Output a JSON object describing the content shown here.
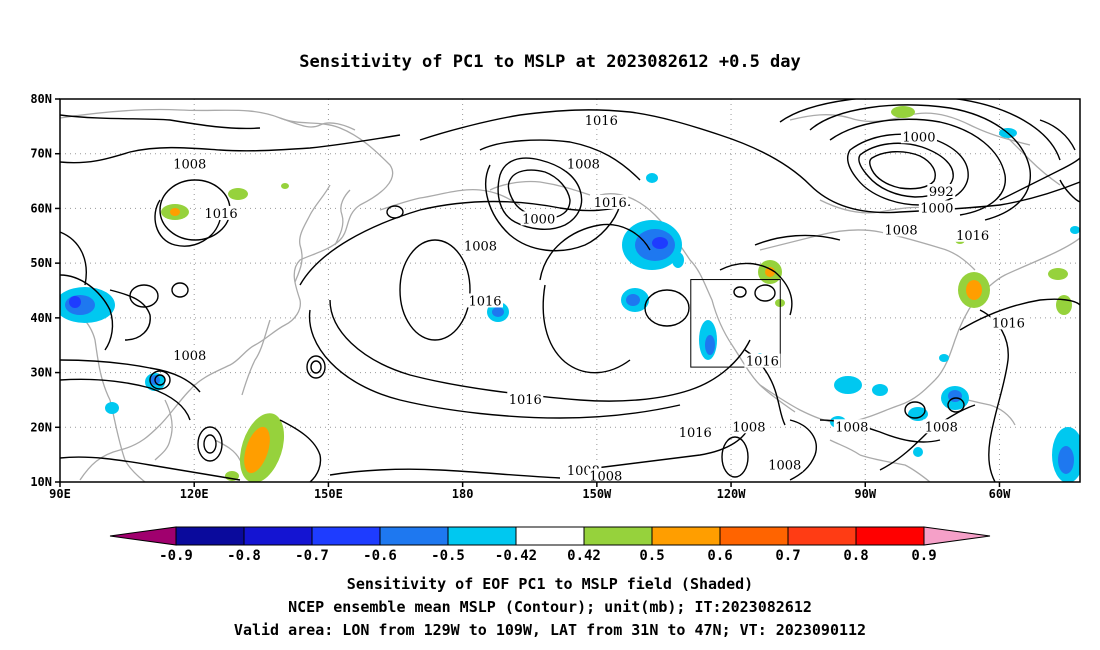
{
  "title": "Sensitivity of PC1 to MSLP at 2023082612 +0.5 day",
  "lat_ticks": [
    "80N",
    "70N",
    "60N",
    "50N",
    "40N",
    "30N",
    "20N",
    "10N"
  ],
  "lon_ticks": [
    "90E",
    "120E",
    "150E",
    "180",
    "150W",
    "120W",
    "90W",
    "60W"
  ],
  "contour_labels": [
    {
      "text": "1016",
      "lon": -149,
      "lat": 76
    },
    {
      "text": "1008",
      "lon": -153,
      "lat": 68
    },
    {
      "text": "1000",
      "lon": -78,
      "lat": 73
    },
    {
      "text": "1008",
      "lon": 119,
      "lat": 68
    },
    {
      "text": "1016",
      "lon": 126,
      "lat": 59
    },
    {
      "text": "1000",
      "lon": -163,
      "lat": 58
    },
    {
      "text": "1016",
      "lon": -147,
      "lat": 61
    },
    {
      "text": "992",
      "lon": -73,
      "lat": 63
    },
    {
      "text": "1000",
      "lon": -74,
      "lat": 60
    },
    {
      "text": "1008",
      "lon": -82,
      "lat": 56
    },
    {
      "text": "1016",
      "lon": -66,
      "lat": 55
    },
    {
      "text": "1008",
      "lon": -176,
      "lat": 53
    },
    {
      "text": "1016",
      "lon": -175,
      "lat": 43
    },
    {
      "text": "1016",
      "lon": -166,
      "lat": 25
    },
    {
      "text": "1016",
      "lon": -128,
      "lat": 19
    },
    {
      "text": "1016",
      "lon": -113,
      "lat": 32
    },
    {
      "text": "1008",
      "lon": -116,
      "lat": 20
    },
    {
      "text": "1008",
      "lon": 119,
      "lat": 33
    },
    {
      "text": "1008",
      "lon": -153,
      "lat": 12
    },
    {
      "text": "1008",
      "lon": -148,
      "lat": 11
    },
    {
      "text": "1008",
      "lon": -93,
      "lat": 20
    },
    {
      "text": "1008",
      "lon": -73,
      "lat": 20
    },
    {
      "text": "1008",
      "lon": -108,
      "lat": 13
    },
    {
      "text": "1016",
      "lon": -58,
      "lat": 39
    }
  ],
  "colorbar": {
    "labels": [
      "-0.9",
      "-0.8",
      "-0.7",
      "-0.6",
      "-0.5",
      "-0.42",
      "0.42",
      "0.5",
      "0.6",
      "0.7",
      "0.8",
      "0.9"
    ],
    "colors": [
      "#a0006e",
      "#0a0a9c",
      "#1414d2",
      "#1e3cff",
      "#1e78f0",
      "#00c8f0",
      "#ffffff",
      "#96d23c",
      "#ff9e00",
      "#ff6400",
      "#ff3c14",
      "#ff0000",
      "#f5a0c8"
    ]
  },
  "footer": {
    "line1": "Sensitivity of EOF PC1 to MSLP field (Shaded)",
    "line2": "NCEP ensemble mean MSLP (Contour); unit(mb); IT:2023082612",
    "line3": "Valid area: LON from 129W to 109W, LAT from 31N to 47N; VT: 2023090112"
  },
  "valid_area": {
    "lon_min": -129,
    "lon_max": -109,
    "lat_min": 31,
    "lat_max": 47
  }
}
